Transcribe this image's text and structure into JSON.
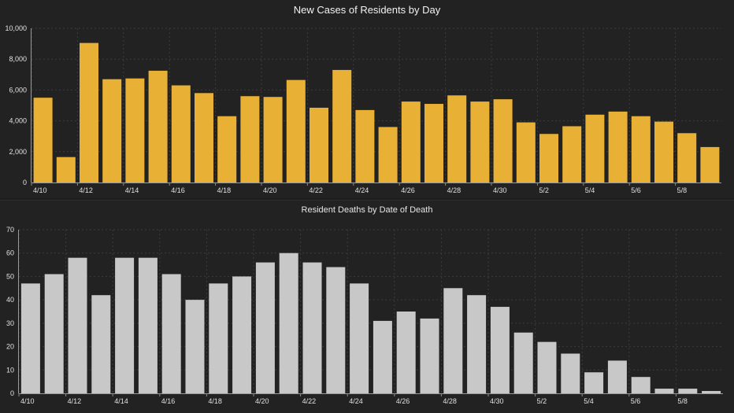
{
  "chart_data": [
    {
      "type": "bar",
      "title": "New Cases of Residents by Day",
      "xlabel": "",
      "ylabel": "",
      "ylim": [
        0,
        10000
      ],
      "yticks": [
        "0",
        "2,000",
        "4,000",
        "6,000",
        "8,000",
        "10,000"
      ],
      "grid": true,
      "bar_color": "#e8b035",
      "categories": [
        "4/10",
        "4/11",
        "4/12",
        "4/13",
        "4/14",
        "4/15",
        "4/16",
        "4/17",
        "4/18",
        "4/19",
        "4/20",
        "4/21",
        "4/22",
        "4/23",
        "4/24",
        "4/25",
        "4/26",
        "4/27",
        "4/28",
        "4/29",
        "4/30",
        "5/1",
        "5/2",
        "5/3",
        "5/4",
        "5/5",
        "5/6",
        "5/7",
        "5/8",
        "5/9"
      ],
      "x_tick_labels": [
        "4/10",
        "4/12",
        "4/14",
        "4/16",
        "4/18",
        "4/20",
        "4/22",
        "4/24",
        "4/26",
        "4/28",
        "4/30",
        "5/2",
        "5/4",
        "5/6",
        "5/8"
      ],
      "values": [
        5500,
        1650,
        9050,
        6700,
        6750,
        7250,
        6300,
        5800,
        4300,
        5600,
        5550,
        6650,
        4850,
        7300,
        4700,
        3600,
        5250,
        5100,
        5650,
        5250,
        5400,
        3900,
        3150,
        3650,
        4400,
        4600,
        4300,
        3950,
        3200,
        2300
      ]
    },
    {
      "type": "bar",
      "title": "Resident Deaths by Date of Death",
      "xlabel": "",
      "ylabel": "",
      "ylim": [
        0,
        70
      ],
      "yticks": [
        "0",
        "10",
        "20",
        "30",
        "40",
        "50",
        "60",
        "70"
      ],
      "grid": true,
      "bar_color": "#c8c8c8",
      "categories": [
        "4/10",
        "4/11",
        "4/12",
        "4/13",
        "4/14",
        "4/15",
        "4/16",
        "4/17",
        "4/18",
        "4/19",
        "4/20",
        "4/21",
        "4/22",
        "4/23",
        "4/24",
        "4/25",
        "4/26",
        "4/27",
        "4/28",
        "4/29",
        "4/30",
        "5/1",
        "5/2",
        "5/3",
        "5/4",
        "5/5",
        "5/6",
        "5/7",
        "5/8",
        "5/9"
      ],
      "x_tick_labels": [
        "4/10",
        "4/12",
        "4/14",
        "4/16",
        "4/18",
        "4/20",
        "4/22",
        "4/24",
        "4/26",
        "4/28",
        "4/30",
        "5/2",
        "5/4",
        "5/6",
        "5/8"
      ],
      "values": [
        47,
        51,
        58,
        42,
        58,
        58,
        51,
        40,
        47,
        50,
        56,
        60,
        56,
        54,
        47,
        31,
        35,
        32,
        45,
        42,
        37,
        26,
        22,
        17,
        9,
        14,
        7,
        2,
        2,
        1
      ]
    }
  ]
}
